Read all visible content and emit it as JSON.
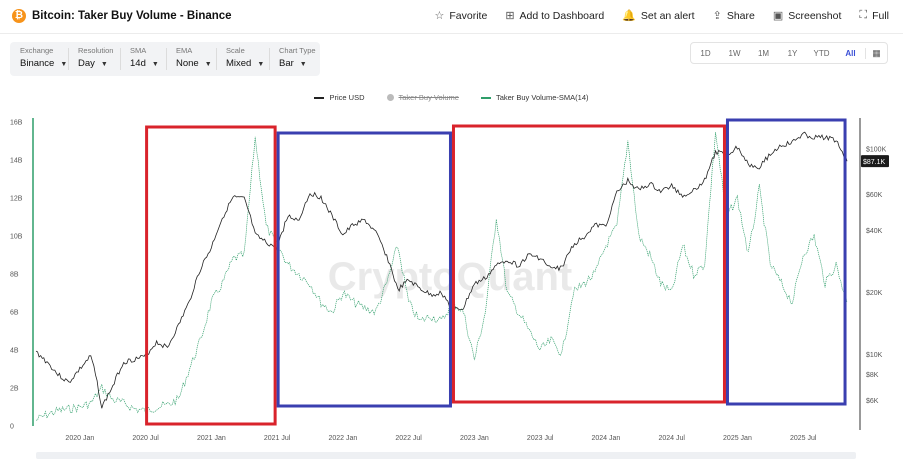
{
  "header": {
    "logo_glyph": "₿",
    "title": "Bitcoin: Taker Buy Volume - Binance",
    "actions": [
      {
        "label": "Favorite",
        "icon": "☆"
      },
      {
        "label": "Add to Dashboard",
        "icon": "⊞"
      },
      {
        "label": "Set an alert",
        "icon": "🔔"
      },
      {
        "label": "Share",
        "icon": "⇪"
      },
      {
        "label": "Screenshot",
        "icon": "▣"
      },
      {
        "label": "Full",
        "icon": "⛶"
      }
    ]
  },
  "controls": [
    {
      "label": "Exchange",
      "value": "Binance"
    },
    {
      "label": "Resolution",
      "value": "Day"
    },
    {
      "label": "SMA",
      "value": "14d"
    },
    {
      "label": "EMA",
      "value": "None"
    },
    {
      "label": "Scale",
      "value": "Mixed"
    },
    {
      "label": "Chart Type",
      "value": "Bar"
    }
  ],
  "ranges": [
    "1D",
    "1W",
    "1M",
    "1Y",
    "YTD",
    "All"
  ],
  "active_range": "All",
  "legend": [
    {
      "label": "Price USD",
      "color": "#222222",
      "enabled": true
    },
    {
      "label": "Taker Buy Volume",
      "color": "#bbbbbb",
      "enabled": false
    },
    {
      "label": "Taker Buy Volume-SMA(14)",
      "color": "#2f9e6a",
      "enabled": true
    }
  ],
  "watermark": "CryptoQuant",
  "colors": {
    "price": "#222222",
    "sma": "#2f9e6a",
    "red_box": "#d9232b",
    "blue_box": "#3a3fb0",
    "price_badge_bg": "#1b1b1b"
  },
  "chart_data": {
    "type": "line",
    "left_axis": {
      "ticks": [
        "16B",
        "14B",
        "12B",
        "10B",
        "8B",
        "6B",
        "4B",
        "2B",
        "0"
      ],
      "range": [
        0,
        16
      ]
    },
    "right_axis": {
      "ticks": [
        "$100K",
        "$60K",
        "$40K",
        "$20K",
        "$10K",
        "$8K",
        "$6K"
      ]
    },
    "x_ticks": [
      "2020 Jan",
      "2020 Jul",
      "2021 Jan",
      "2021 Jul",
      "2022 Jan",
      "2022 Jul",
      "2023 Jan",
      "2023 Jul",
      "2024 Jan",
      "2024 Jul",
      "2025 Jan",
      "2025 Jul"
    ],
    "price_label": "$87.1K",
    "series": [
      {
        "name": "Price USD",
        "axis": "right",
        "unit": "USD",
        "x": [
          "2019-09",
          "2019-10",
          "2019-11",
          "2019-12",
          "2020-01",
          "2020-02",
          "2020-03",
          "2020-04",
          "2020-05",
          "2020-06",
          "2020-07",
          "2020-08",
          "2020-09",
          "2020-10",
          "2020-11",
          "2020-12",
          "2021-01",
          "2021-02",
          "2021-03",
          "2021-04",
          "2021-05",
          "2021-06",
          "2021-07",
          "2021-08",
          "2021-09",
          "2021-10",
          "2021-11",
          "2021-12",
          "2022-01",
          "2022-02",
          "2022-03",
          "2022-04",
          "2022-05",
          "2022-06",
          "2022-07",
          "2022-08",
          "2022-09",
          "2022-10",
          "2022-11",
          "2022-12",
          "2023-01",
          "2023-02",
          "2023-03",
          "2023-04",
          "2023-05",
          "2023-06",
          "2023-07",
          "2023-08",
          "2023-09",
          "2023-10",
          "2023-11",
          "2023-12",
          "2024-01",
          "2024-02",
          "2024-03",
          "2024-04",
          "2024-05",
          "2024-06",
          "2024-07",
          "2024-08",
          "2024-09",
          "2024-10",
          "2024-11",
          "2024-12",
          "2025-01",
          "2025-02",
          "2025-03",
          "2025-04",
          "2025-05",
          "2025-06",
          "2025-07",
          "2025-08",
          "2025-09",
          "2025-10",
          "2025-11"
        ],
        "values": [
          10300,
          9200,
          8000,
          7300,
          8500,
          9800,
          5500,
          7000,
          9200,
          9500,
          9800,
          11500,
          10800,
          13800,
          18000,
          26000,
          33000,
          46000,
          58000,
          57000,
          38000,
          35000,
          33000,
          47000,
          45000,
          61000,
          58000,
          47000,
          38000,
          43000,
          45000,
          39000,
          30000,
          20500,
          23000,
          21000,
          19500,
          20000,
          16500,
          16800,
          22000,
          23500,
          27000,
          29000,
          27000,
          30500,
          29500,
          26000,
          26500,
          34000,
          37500,
          42500,
          42000,
          61000,
          70000,
          63000,
          67500,
          62000,
          66000,
          59000,
          63000,
          70000,
          96000,
          94000,
          102000,
          84000,
          82000,
          94000,
          104000,
          107000,
          118000,
          113000,
          114000,
          110000,
          87100
        ]
      },
      {
        "name": "Taker Buy Volume-SMA(14)",
        "axis": "left",
        "unit": "B",
        "x": [
          "2019-09",
          "2019-10",
          "2019-11",
          "2019-12",
          "2020-01",
          "2020-02",
          "2020-03",
          "2020-04",
          "2020-05",
          "2020-06",
          "2020-07",
          "2020-08",
          "2020-09",
          "2020-10",
          "2020-11",
          "2020-12",
          "2021-01",
          "2021-02",
          "2021-03",
          "2021-04",
          "2021-05",
          "2021-06",
          "2021-07",
          "2021-08",
          "2021-09",
          "2021-10",
          "2021-11",
          "2021-12",
          "2022-01",
          "2022-02",
          "2022-03",
          "2022-04",
          "2022-05",
          "2022-06",
          "2022-07",
          "2022-08",
          "2022-09",
          "2022-10",
          "2022-11",
          "2022-12",
          "2023-01",
          "2023-02",
          "2023-03",
          "2023-04",
          "2023-05",
          "2023-06",
          "2023-07",
          "2023-08",
          "2023-09",
          "2023-10",
          "2023-11",
          "2023-12",
          "2024-01",
          "2024-02",
          "2024-03",
          "2024-04",
          "2024-05",
          "2024-06",
          "2024-07",
          "2024-08",
          "2024-09",
          "2024-10",
          "2024-11",
          "2024-12",
          "2025-01",
          "2025-02",
          "2025-03",
          "2025-04",
          "2025-05",
          "2025-06",
          "2025-07",
          "2025-08",
          "2025-09",
          "2025-10",
          "2025-11"
        ],
        "values": [
          0.3,
          0.6,
          0.8,
          0.9,
          1.0,
          1.2,
          2.0,
          1.4,
          1.2,
          0.9,
          0.8,
          1.0,
          1.1,
          1.4,
          3.0,
          4.5,
          6.5,
          7.5,
          8.8,
          9.0,
          15.2,
          10.5,
          9.5,
          8.5,
          8.0,
          7.5,
          6.5,
          6.0,
          7.0,
          6.5,
          6.2,
          6.0,
          7.5,
          9.5,
          6.5,
          5.5,
          5.8,
          5.5,
          6.5,
          6.0,
          3.5,
          6.0,
          11.0,
          7.0,
          6.0,
          5.0,
          4.0,
          4.5,
          3.8,
          7.0,
          7.5,
          8.0,
          9.5,
          10.5,
          15.0,
          10.0,
          9.0,
          7.5,
          7.0,
          9.5,
          8.0,
          8.5,
          15.5,
          11.0,
          12.0,
          9.0,
          12.5,
          8.5,
          7.5,
          6.5,
          9.0,
          10.0,
          7.5,
          8.5,
          6.5
        ]
      }
    ],
    "annotations": [
      {
        "type": "box",
        "color": "red",
        "from": "2020-07",
        "to": "2021-07"
      },
      {
        "type": "box",
        "color": "blue",
        "from": "2021-07",
        "to": "2022-11"
      },
      {
        "type": "box",
        "color": "red",
        "from": "2022-11",
        "to": "2024-12"
      },
      {
        "type": "box",
        "color": "blue",
        "from": "2024-12",
        "to": "2025-11"
      }
    ]
  }
}
